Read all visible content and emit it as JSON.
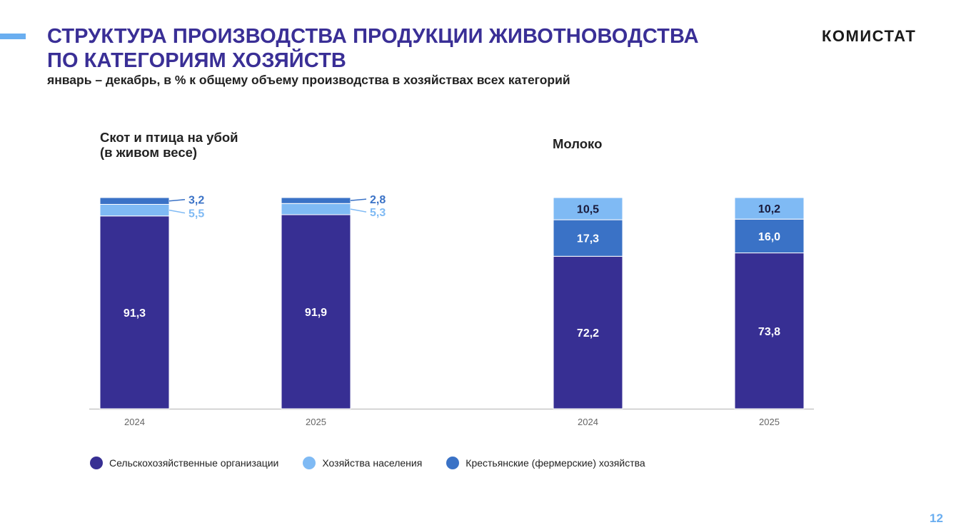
{
  "header": {
    "title_line1": "СТРУКТУРА ПРОИЗВОДСТВА ПРОДУКЦИИ ЖИВОТНОВОДСТВА",
    "title_line2": "ПО КАТЕГОРИЯМ ХОЗЯЙСТВ",
    "subtitle": "январь – декабрь, в % к общему объему производства в хозяйствах всех категорий",
    "logo": "КОМИСТАТ",
    "title_color": "#3a2f96",
    "accent_color": "#6aaef0"
  },
  "legend": [
    {
      "label": "Сельскохозяйственные организации",
      "color": "#372f93"
    },
    {
      "label": "Хозяйства населения",
      "color": "#7fbaf4"
    },
    {
      "label": "Крестьянские (фермерские) хозяйства",
      "color": "#3a72c6"
    }
  ],
  "page_number": "12",
  "chart_data": [
    {
      "type": "bar",
      "stacked": true,
      "title_line1": "Скот и птица на убой",
      "title_line2": "(в живом весе)",
      "categories": [
        "2024",
        "2025"
      ],
      "series": [
        {
          "name": "Сельскохозяйственные организации",
          "values": [
            91.3,
            91.9
          ],
          "labels": [
            "91,3",
            "91,9"
          ],
          "color": "#372f93"
        },
        {
          "name": "Хозяйства населения",
          "values": [
            5.5,
            5.3
          ],
          "labels": [
            "5,5",
            "5,3"
          ],
          "color": "#7fbaf4"
        },
        {
          "name": "Крестьянские (фермерские) хозяйства",
          "values": [
            3.2,
            2.8
          ],
          "labels": [
            "3,2",
            "2,8"
          ],
          "color": "#3a72c6"
        }
      ],
      "ylim": [
        0,
        100
      ],
      "grid": false,
      "legend_position": "bottom"
    },
    {
      "type": "bar",
      "stacked": true,
      "title_line1": "Молоко",
      "title_line2": "",
      "categories": [
        "2024",
        "2025"
      ],
      "series": [
        {
          "name": "Сельскохозяйственные организации",
          "values": [
            72.2,
            73.8
          ],
          "labels": [
            "72,2",
            "73,8"
          ],
          "color": "#372f93"
        },
        {
          "name": "Крестьянские (фермерские) хозяйства",
          "values": [
            17.3,
            16.0
          ],
          "labels": [
            "17,3",
            "16,0"
          ],
          "color": "#3a72c6"
        },
        {
          "name": "Хозяйства населения",
          "values": [
            10.5,
            10.2
          ],
          "labels": [
            "10,5",
            "10,2"
          ],
          "color": "#7fbaf4"
        }
      ],
      "ylim": [
        0,
        100
      ],
      "grid": false,
      "legend_position": "bottom"
    }
  ]
}
